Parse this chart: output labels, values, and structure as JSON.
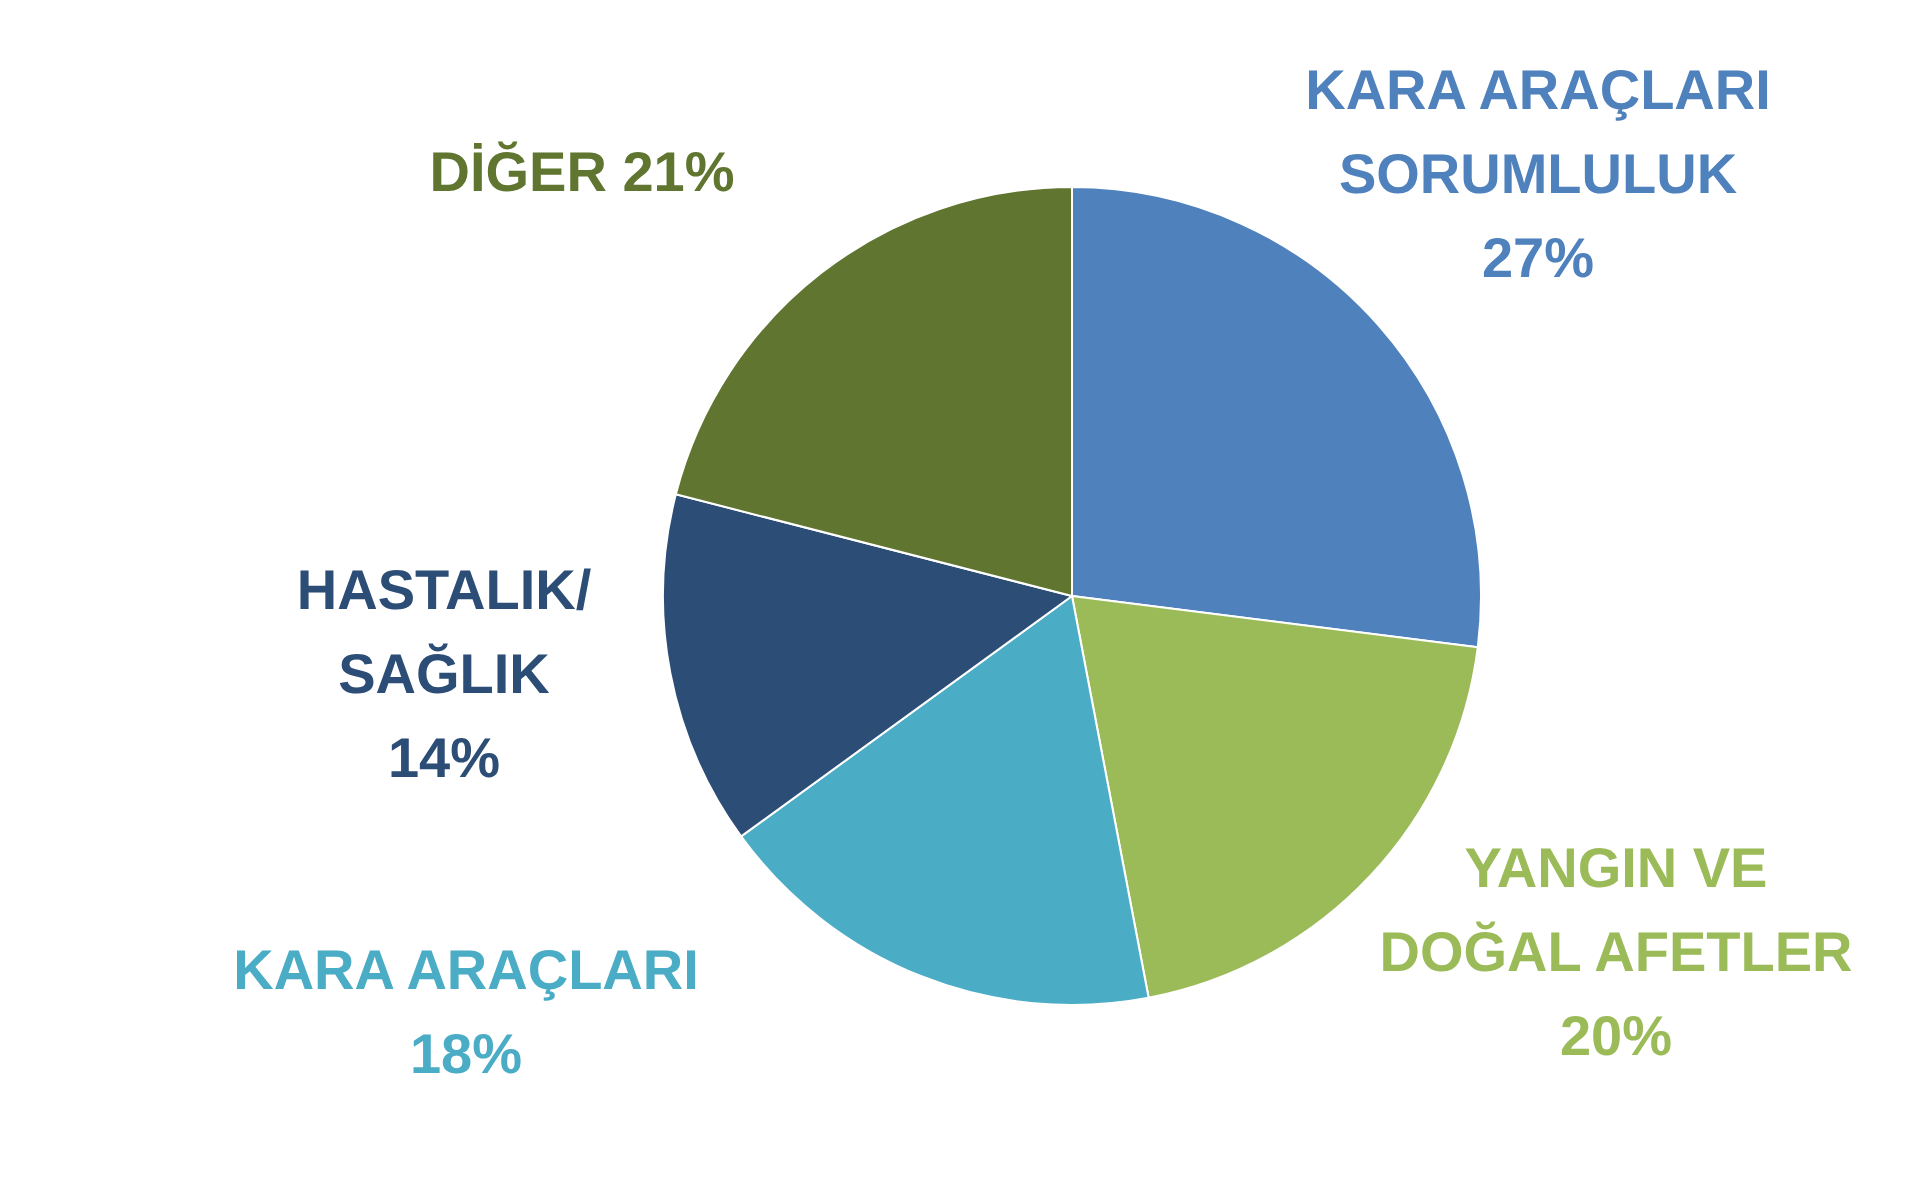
{
  "chart_data": {
    "type": "pie",
    "categories": [
      "KARA ARAÇLARI SORUMLULUK",
      "YANGIN VE DOĞAL AFETLER",
      "KARA ARAÇLARI",
      "HASTALIK/SAĞLIK",
      "DİĞER"
    ],
    "values": [
      27,
      20,
      18,
      14,
      21
    ],
    "colors": [
      "#4f81bd",
      "#9bbb59",
      "#4bacc6",
      "#2c4d75",
      "#5f7530"
    ],
    "value_labels": [
      "27%",
      "20%",
      "18%",
      "14%",
      "21%"
    ]
  }
}
